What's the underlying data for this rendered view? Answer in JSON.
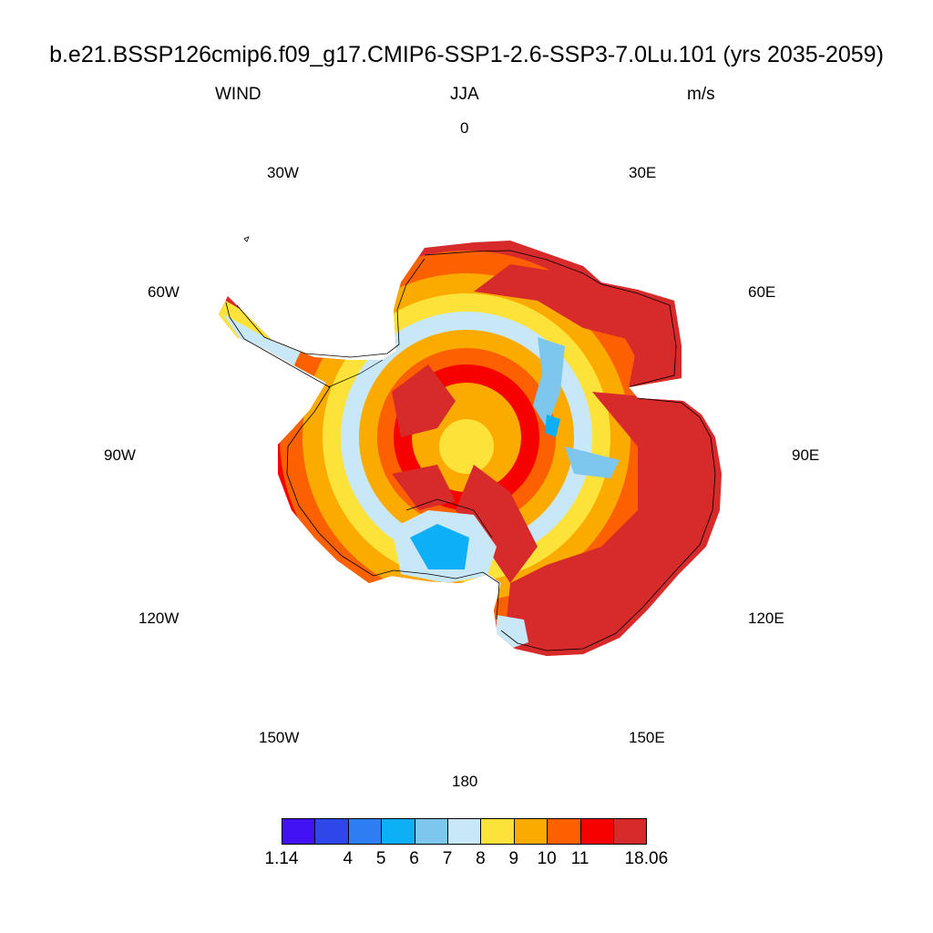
{
  "title": "b.e21.BSSP126cmip6.f09_g17.CMIP6-SSP1-2.6-SSP3-7.0Lu.101 (yrs 2035-2059)",
  "variable": "WIND",
  "season": "JJA",
  "units": "m/s",
  "longitude_labels": {
    "lon_0": "0",
    "lon_30e": "30E",
    "lon_60e": "60E",
    "lon_90e": "90E",
    "lon_120e": "120E",
    "lon_150e": "150E",
    "lon_180": "180",
    "lon_150w": "150W",
    "lon_120w": "120W",
    "lon_90w": "90W",
    "lon_60w": "60W",
    "lon_30w": "30W"
  },
  "colorbar": {
    "colors": [
      "#4212f5",
      "#2f47e8",
      "#2c7ef2",
      "#0db0f7",
      "#7dc6ee",
      "#c8e7f7",
      "#fde23a",
      "#fbab00",
      "#fb6100",
      "#f60000",
      "#d62a2b"
    ],
    "labels": [
      "1.14",
      "4",
      "5",
      "6",
      "7",
      "8",
      "9",
      "10",
      "11",
      "18.06"
    ]
  },
  "chart_data": {
    "type": "heatmap",
    "projection": "south polar stereographic",
    "field": "WIND",
    "season": "JJA",
    "units": "m/s",
    "levels": [
      1.14,
      4,
      5,
      6,
      7,
      8,
      9,
      10,
      11,
      18.06
    ],
    "pattern_description_regions": [
      {
        "region": "East Antarctic coast and ice sheet slopes (30E-150E)",
        "wind_ms": ">11"
      },
      {
        "region": "Central plateau ring",
        "wind_ms": "7-9"
      },
      {
        "region": "South Pole vicinity",
        "wind_ms": "9-10"
      },
      {
        "region": "Antarctic Peninsula",
        "wind_ms": "6-8"
      },
      {
        "region": "Ross Ice Shelf",
        "wind_ms": "5-7"
      },
      {
        "region": "West Antarctic interior lobe (~90W)",
        "wind_ms": ">11"
      }
    ]
  }
}
